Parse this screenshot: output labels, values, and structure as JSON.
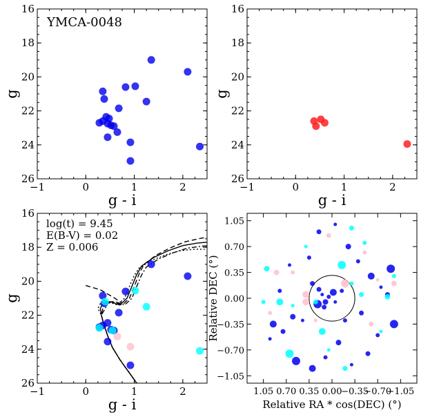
{
  "chart_data": [
    {
      "type": "scatter",
      "panel": "top-left",
      "annotation": "YMCA-0048",
      "xlabel": "g - i",
      "ylabel": "g",
      "xlim": [
        -1,
        2.5
      ],
      "ylim": [
        26,
        16
      ],
      "y_inverted": true,
      "xticks": [
        -1,
        0,
        1,
        2
      ],
      "yticks": [
        16,
        18,
        20,
        22,
        24,
        26
      ],
      "series": [
        {
          "color": "#0000ee",
          "points": [
            [
              1.35,
              19.0
            ],
            [
              2.1,
              19.7
            ],
            [
              0.82,
              20.6
            ],
            [
              1.02,
              20.55
            ],
            [
              0.35,
              20.85
            ],
            [
              1.25,
              21.45
            ],
            [
              0.38,
              21.3
            ],
            [
              0.68,
              21.85
            ],
            [
              0.42,
              22.35
            ],
            [
              0.48,
              22.45
            ],
            [
              0.28,
              22.7
            ],
            [
              0.35,
              22.6
            ],
            [
              0.45,
              22.75
            ],
            [
              0.52,
              22.85
            ],
            [
              0.58,
              22.9
            ],
            [
              0.65,
              23.25
            ],
            [
              0.45,
              23.55
            ],
            [
              0.92,
              23.85
            ],
            [
              2.35,
              24.1
            ],
            [
              0.92,
              24.95
            ]
          ]
        }
      ]
    },
    {
      "type": "scatter",
      "panel": "top-right",
      "xlabel": "g - i",
      "ylabel": "g",
      "xlim": [
        -1,
        2.5
      ],
      "ylim": [
        26,
        16
      ],
      "y_inverted": true,
      "xticks": [
        -1,
        0,
        1,
        2
      ],
      "yticks": [
        16,
        18,
        20,
        22,
        24,
        26
      ],
      "series": [
        {
          "color": "#ff2020",
          "points": [
            [
              0.38,
              22.6
            ],
            [
              0.52,
              22.5
            ],
            [
              0.6,
              22.7
            ],
            [
              0.42,
              22.9
            ],
            [
              2.3,
              23.95
            ]
          ]
        }
      ]
    },
    {
      "type": "scatter",
      "panel": "bottom-left",
      "annotations": [
        "log(t) = 9.45",
        "E(B-V) = 0.02",
        "Z = 0.006"
      ],
      "xlabel": "g - i",
      "ylabel": "g",
      "xlim": [
        -1,
        2.5
      ],
      "ylim": [
        26,
        16
      ],
      "y_inverted": true,
      "xticks": [
        -1,
        0,
        1,
        2
      ],
      "yticks": [
        16,
        18,
        20,
        22,
        24,
        26
      ],
      "series": [
        {
          "color": "#0000ee",
          "points": [
            [
              1.35,
              19.0
            ],
            [
              2.1,
              19.7
            ],
            [
              0.82,
              20.6
            ],
            [
              0.35,
              20.85
            ],
            [
              0.38,
              21.3
            ],
            [
              0.68,
              21.85
            ],
            [
              0.28,
              22.7
            ],
            [
              0.35,
              22.6
            ],
            [
              0.45,
              22.45
            ],
            [
              0.52,
              22.85
            ],
            [
              0.58,
              22.9
            ],
            [
              0.45,
              23.55
            ],
            [
              0.92,
              24.95
            ]
          ]
        },
        {
          "color": "#00ffff",
          "points": [
            [
              1.02,
              20.55
            ],
            [
              0.4,
              21.2
            ],
            [
              1.25,
              21.5
            ],
            [
              0.28,
              22.75
            ],
            [
              0.55,
              22.9
            ],
            [
              2.35,
              24.1
            ]
          ]
        },
        {
          "color": "#ffc0cb",
          "points": [
            [
              0.65,
              23.25
            ],
            [
              0.92,
              23.85
            ]
          ]
        }
      ],
      "isochrones": [
        "solid",
        "dashed",
        "dashdot",
        "dotted"
      ]
    },
    {
      "type": "scatter",
      "panel": "bottom-right",
      "xlabel": "Relative RA * cos(DEC) (°)",
      "ylabel": "Relative DEC (°)",
      "xlim": [
        1.3,
        -1.3
      ],
      "ylim": [
        -1.15,
        1.15
      ],
      "xticks": [
        "1.05",
        "0.70",
        "0.35",
        "0.00",
        "-0.35",
        "-0.70",
        "-1.05"
      ],
      "yticks": [
        "1.05",
        "0.70",
        "0.35",
        "0.00",
        "-0.35",
        "-0.70",
        "-1.05"
      ],
      "circle_radius": 0.35,
      "series": [
        {
          "color": "#0000ee",
          "points": [
            [
              0.2,
              0.12
            ],
            [
              0.15,
              0.05
            ],
            [
              0.1,
              -0.05
            ],
            [
              0.05,
              0.02
            ],
            [
              -0.02,
              0.08
            ],
            [
              -0.05,
              -0.05
            ],
            [
              0.12,
              -0.12
            ],
            [
              0.22,
              -0.08
            ],
            [
              -0.15,
              0.1
            ],
            [
              0.3,
              0.2
            ],
            [
              0.45,
              -0.3
            ],
            [
              0.6,
              -0.25
            ],
            [
              0.8,
              0.1
            ],
            [
              0.9,
              -0.35
            ],
            [
              0.95,
              -0.55
            ],
            [
              0.75,
              -0.45
            ],
            [
              0.55,
              -0.85
            ],
            [
              0.35,
              0.55
            ],
            [
              0.2,
              0.9
            ],
            [
              -0.05,
              1.0
            ],
            [
              -0.25,
              0.7
            ],
            [
              -0.4,
              0.5
            ],
            [
              -0.6,
              0.3
            ],
            [
              -0.75,
              0.15
            ],
            [
              -0.85,
              0.05
            ],
            [
              -0.95,
              -0.35
            ],
            [
              -0.7,
              -0.5
            ],
            [
              -0.55,
              -0.75
            ],
            [
              -0.3,
              -0.9
            ],
            [
              -0.1,
              -0.6
            ],
            [
              0.1,
              -0.8
            ],
            [
              0.3,
              -0.95
            ],
            [
              0.65,
              0.45
            ],
            [
              -0.45,
              -0.2
            ],
            [
              -0.9,
              0.4
            ],
            [
              -0.2,
              -0.3
            ]
          ]
        },
        {
          "color": "#00ffff",
          "points": [
            [
              0.4,
              0.7
            ],
            [
              1.0,
              0.4
            ],
            [
              1.05,
              -0.05
            ],
            [
              0.8,
              -0.05
            ],
            [
              0.6,
              -0.1
            ],
            [
              0.25,
              -0.05
            ],
            [
              -0.15,
              0.45
            ],
            [
              -0.3,
              0.2
            ],
            [
              -0.45,
              0.05
            ],
            [
              -0.75,
              -0.45
            ],
            [
              -0.85,
              0.02
            ],
            [
              -0.95,
              0.3
            ],
            [
              0.15,
              -0.45
            ],
            [
              0.05,
              -0.7
            ],
            [
              -0.2,
              -0.95
            ],
            [
              0.65,
              -0.75
            ],
            [
              -0.5,
              0.75
            ],
            [
              -0.3,
              0.95
            ]
          ]
        },
        {
          "color": "#ffc0cb",
          "points": [
            [
              0.85,
              0.35
            ],
            [
              0.6,
              0.35
            ],
            [
              0.4,
              -0.05
            ],
            [
              0.25,
              -0.3
            ],
            [
              0.05,
              0.85
            ],
            [
              -0.2,
              0.2
            ],
            [
              -0.5,
              0.62
            ],
            [
              -0.6,
              -0.35
            ],
            [
              -0.7,
              0.25
            ],
            [
              -0.95,
              0.2
            ],
            [
              0.95,
              -0.2
            ],
            [
              0.4,
              0.05
            ]
          ]
        }
      ]
    }
  ]
}
